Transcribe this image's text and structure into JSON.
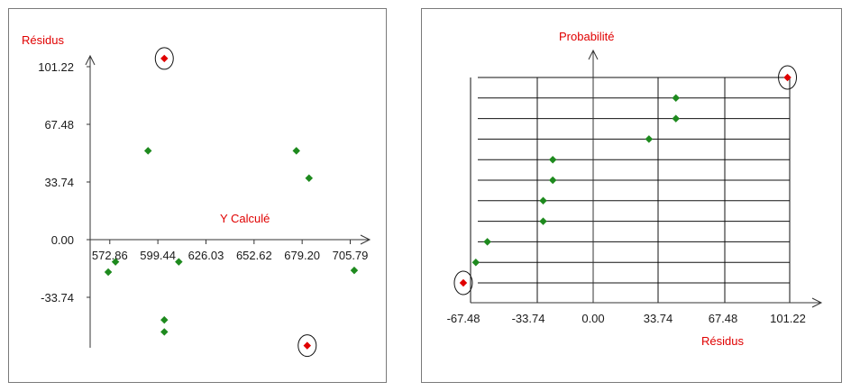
{
  "chart_data": [
    {
      "type": "scatter",
      "title": "",
      "xlabel": "Y Calculé",
      "ylabel": "Résidus",
      "x_ticks": [
        "572.86",
        "599.44",
        "626.03",
        "652.62",
        "679.20",
        "705.79"
      ],
      "y_ticks": [
        "101.22",
        "67.48",
        "33.74",
        "0.00",
        "-33.74"
      ],
      "xlim": [
        562,
        716
      ],
      "ylim": [
        -68,
        112
      ],
      "colors": {
        "normal": "#1e8a1e",
        "outlier": "#e00000",
        "axis_title": "#e00000"
      },
      "points": [
        {
          "x": 572,
          "y": -19,
          "outlier": false
        },
        {
          "x": 576,
          "y": -13,
          "outlier": false
        },
        {
          "x": 594,
          "y": 52,
          "outlier": false
        },
        {
          "x": 603,
          "y": 106,
          "outlier": true
        },
        {
          "x": 603,
          "y": -47,
          "outlier": false
        },
        {
          "x": 603,
          "y": -54,
          "outlier": false
        },
        {
          "x": 611,
          "y": -13,
          "outlier": false
        },
        {
          "x": 676,
          "y": 52,
          "outlier": false
        },
        {
          "x": 683,
          "y": 36,
          "outlier": false
        },
        {
          "x": 682,
          "y": -62,
          "outlier": true
        },
        {
          "x": 708,
          "y": -18,
          "outlier": false
        }
      ]
    },
    {
      "type": "scatter",
      "title": "",
      "xlabel": "Résidus",
      "ylabel": "Probabilité",
      "x_ticks": [
        "-67.48",
        "-33.74",
        "0.00",
        "33.74",
        "67.48",
        "101.22"
      ],
      "xlim": [
        -75,
        113
      ],
      "grid": true,
      "colors": {
        "normal": "#1e8a1e",
        "outlier": "#e00000",
        "axis_title": "#e00000"
      },
      "points": [
        {
          "x": -67.5,
          "y": 0,
          "outlier": true
        },
        {
          "x": -61,
          "y": 1,
          "outlier": false
        },
        {
          "x": -55,
          "y": 2,
          "outlier": false
        },
        {
          "x": -26,
          "y": 3,
          "outlier": false
        },
        {
          "x": -26,
          "y": 4,
          "outlier": false
        },
        {
          "x": -21,
          "y": 5,
          "outlier": false
        },
        {
          "x": -21,
          "y": 6,
          "outlier": false
        },
        {
          "x": 29,
          "y": 7,
          "outlier": false
        },
        {
          "x": 43,
          "y": 8,
          "outlier": false
        },
        {
          "x": 43,
          "y": 9,
          "outlier": false
        },
        {
          "x": 101,
          "y": 10,
          "outlier": true
        }
      ]
    }
  ]
}
